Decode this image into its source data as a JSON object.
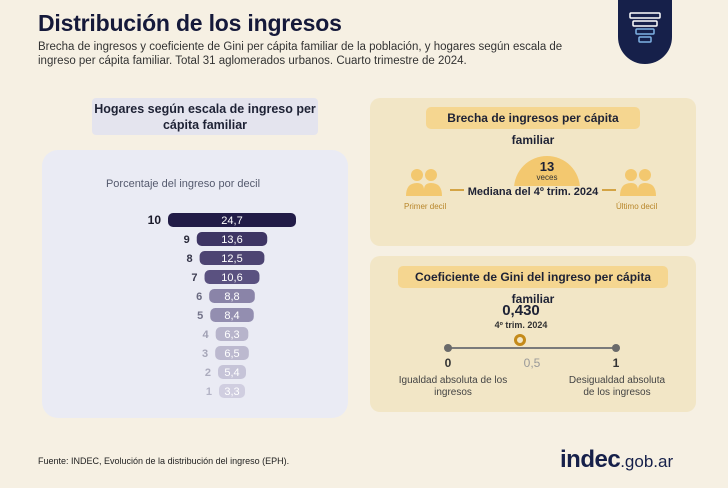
{
  "title": "Distribución de los ingresos",
  "subtitle": "Brecha de ingresos y coeficiente de Gini per cápita familiar de la población, y hogares según escala de ingreso per cápita familiar. Total 31 aglomerados urbanos. Cuarto trimestre de 2024.",
  "logo_icon": "funnel-stack-icon",
  "hogares": {
    "header": "Hogares según escala de ingreso per cápita familiar",
    "card_label": "Porcentaje del ingreso por decil"
  },
  "chart_data": {
    "type": "bar",
    "title": "Porcentaje del ingreso por decil",
    "orientation": "horizontal-funnel",
    "categories": [
      "10",
      "9",
      "8",
      "7",
      "6",
      "5",
      "4",
      "3",
      "2",
      "1"
    ],
    "values": [
      24.7,
      13.6,
      12.5,
      10.6,
      8.8,
      8.4,
      6.3,
      6.5,
      5.4,
      3.3
    ],
    "value_labels": [
      "24,7",
      "13,6",
      "12,5",
      "10,6",
      "8,8",
      "8,4",
      "6,3",
      "6,5",
      "5,4",
      "3,3"
    ],
    "colors": [
      "#221c47",
      "#3e3564",
      "#4d4472",
      "#5a5180",
      "#8a84a8",
      "#938eb0",
      "#b7b4cb",
      "#bcb9cf",
      "#c6c4d8",
      "#d0cee0"
    ],
    "label_colors": [
      "#1a1a2a",
      "#2a2a3a",
      "#343448",
      "#3e3e52",
      "#6a6a80",
      "#74748a",
      "#a0a0b4",
      "#a6a6b8",
      "#acacbe",
      "#b4b4c6"
    ]
  },
  "brecha": {
    "header": "Brecha de ingresos per cápita familiar",
    "value": "13",
    "unit": "veces",
    "mediana": "Mediana del 4º trim. 2024",
    "left_label": "Primer decil",
    "right_label": "Último decil"
  },
  "gini": {
    "header": "Coeficiente de Gini del ingreso per cápita familiar",
    "value": "0,430",
    "numeric_value": 0.43,
    "period": "4º trim. 2024",
    "scale_min": "0",
    "scale_mid": "0,5",
    "scale_max": "1",
    "left_label": "Igualdad absoluta de los ingresos",
    "right_label": "Desigualdad absoluta de los ingresos"
  },
  "footer": {
    "source": "Fuente: INDEC, Evolución de la distribución del ingreso (EPH).",
    "brand_main": "indec",
    "brand_domain": ".gob.ar"
  },
  "colors": {
    "navy": "#16204a",
    "gold": "#f3c86f",
    "cream_panel": "#f2e6c6",
    "lavender_panel": "#eaebf4"
  }
}
